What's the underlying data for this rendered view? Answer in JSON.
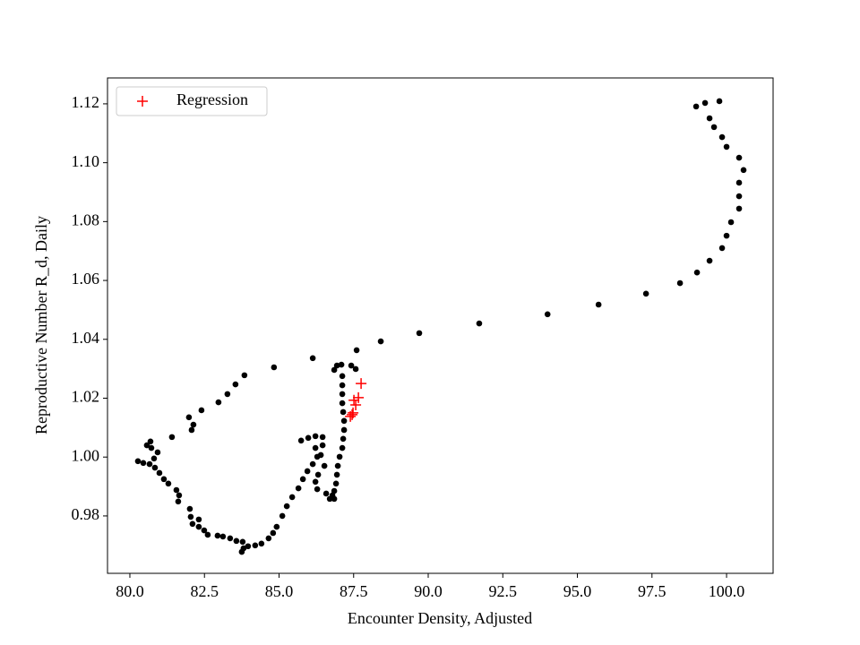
{
  "chart_data": {
    "type": "scatter",
    "x_label": "Encounter Density, Adjusted",
    "y_label": "Reproductive Number R_d, Daily",
    "xlim": [
      79.25,
      101.56
    ],
    "ylim": [
      0.9605,
      1.1288
    ],
    "xticks": [
      {
        "value": 80,
        "label": "80.0"
      },
      82.5,
      {
        "value": 85,
        "label": "85.0"
      },
      87.5,
      {
        "value": 90,
        "label": "90.0"
      },
      92.5,
      {
        "value": 95,
        "label": "95.0"
      },
      97.5,
      {
        "value": 100,
        "label": "100.0"
      }
    ],
    "yticks": [
      0.98,
      {
        "value": 1,
        "label": "1.00"
      },
      1.02,
      1.04,
      1.06,
      1.08,
      {
        "value": 1.1,
        "label": "1.10"
      },
      1.12
    ],
    "legend": "upper left",
    "series": [
      {
        "color": "#000000",
        "marker": "dot",
        "x": [
          98.98,
          99.28,
          99.43,
          99.58,
          99.85,
          100.0,
          99.76,
          100.42,
          100.57,
          100.42,
          100.42,
          100.42,
          100.15,
          100.0,
          99.85,
          99.43,
          99.01,
          98.44,
          97.3,
          95.71,
          94.0,
          91.71,
          89.7,
          88.41,
          87.6,
          87.57,
          87.42,
          86.94,
          87.09,
          86.85,
          87.12,
          87.12,
          87.12,
          87.12,
          87.15,
          87.18,
          87.18,
          87.15,
          87.12,
          87.03,
          86.97,
          86.94,
          86.91,
          86.85,
          86.79,
          86.7,
          86.85,
          86.58,
          86.52,
          86.31,
          86.22,
          86.28,
          86.4,
          86.46,
          86.46,
          86.22,
          85.98,
          85.74,
          86.22,
          86.28,
          86.13,
          85.95,
          85.8,
          85.65,
          85.44,
          85.26,
          85.11,
          84.92,
          84.8,
          84.65,
          84.41,
          84.2,
          83.96,
          83.81,
          83.75,
          83.78,
          83.57,
          83.36,
          83.12,
          82.94,
          82.61,
          82.49,
          82.31,
          82.1,
          82.31,
          82.04,
          82.01,
          81.62,
          81.65,
          81.56,
          81.29,
          81.14,
          80.99,
          80.84,
          80.66,
          80.45,
          80.27,
          80.81,
          80.93,
          80.72,
          80.57,
          80.69,
          81.41,
          82.07,
          82.13,
          81.98,
          82.4,
          82.97,
          83.27,
          83.54,
          83.84,
          84.83,
          86.13
        ],
        "values": [
          1.1191,
          1.1203,
          1.1151,
          1.1121,
          1.1087,
          1.1054,
          1.1209,
          1.1017,
          1.0975,
          1.0932,
          1.0886,
          1.0844,
          1.0798,
          1.0752,
          1.071,
          1.0667,
          1.0627,
          1.0591,
          1.0555,
          1.0518,
          1.0485,
          1.0454,
          1.0421,
          1.0393,
          1.0363,
          1.0299,
          1.0311,
          1.0311,
          1.0314,
          1.0296,
          1.0275,
          1.0244,
          1.0214,
          1.0183,
          1.0153,
          1.0123,
          1.0092,
          1.0062,
          1.0031,
          1.0001,
          0.997,
          0.994,
          0.991,
          0.9885,
          0.987,
          0.9858,
          0.9858,
          0.9876,
          0.997,
          0.994,
          0.9916,
          0.9891,
          1.0007,
          1.004,
          1.0068,
          1.0071,
          1.0065,
          1.0056,
          1.0031,
          1.0001,
          0.9976,
          0.9952,
          0.9925,
          0.9894,
          0.9864,
          0.9833,
          0.98,
          0.9763,
          0.9742,
          0.9724,
          0.9706,
          0.97,
          0.9697,
          0.969,
          0.9678,
          0.9712,
          0.9715,
          0.9724,
          0.973,
          0.9733,
          0.9736,
          0.9751,
          0.9763,
          0.9773,
          0.9788,
          0.9797,
          0.9824,
          0.9849,
          0.987,
          0.9888,
          0.991,
          0.9925,
          0.9946,
          0.9964,
          0.9976,
          0.998,
          0.9986,
          0.9995,
          1.0016,
          1.0031,
          1.004,
          1.0053,
          1.0068,
          1.0092,
          1.011,
          1.0135,
          1.0159,
          1.0186,
          1.0214,
          1.0247,
          1.0278,
          1.0305,
          1.0336
        ]
      },
      {
        "name": "Regression",
        "color": "#ff0000",
        "marker": "plus",
        "x": [
          87.39,
          87.48,
          87.51,
          87.57,
          87.66,
          87.75,
          87.45
        ],
        "values": [
          1.0138,
          1.015,
          1.0193,
          1.0177,
          1.0202,
          1.025,
          1.0144
        ]
      }
    ]
  }
}
